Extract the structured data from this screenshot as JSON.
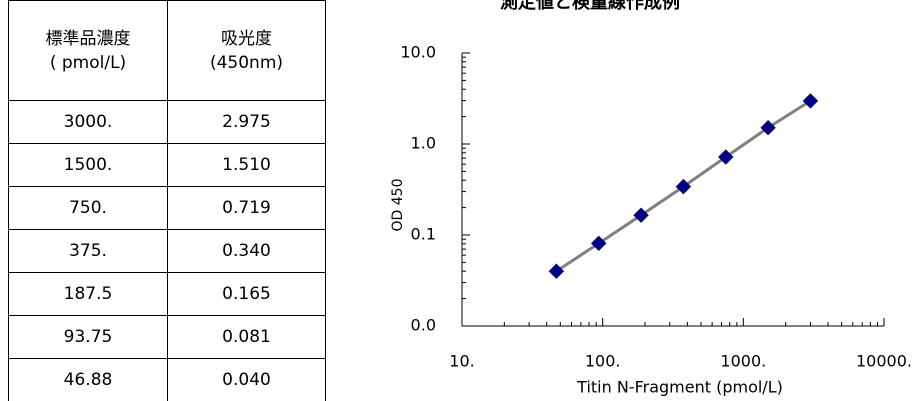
{
  "table": {
    "header": [
      [
        "標準品濃度",
        "( pmol/L)"
      ],
      [
        "吸光度",
        "(450nm)"
      ]
    ],
    "rows": [
      [
        "3000.",
        "2.975"
      ],
      [
        "1500.",
        "1.510"
      ],
      [
        "750.",
        "0.719"
      ],
      [
        "375.",
        "0.340"
      ],
      [
        "187.5",
        "0.165"
      ],
      [
        "93.75",
        "0.081"
      ],
      [
        "46.88",
        "0.040"
      ]
    ]
  },
  "chart_data": {
    "type": "scatter",
    "title": "測定値と検量線作成例",
    "x_label": "Titin N-Fragment (pmol/L)",
    "y_label": "OD 450",
    "x": [
      3000,
      1500,
      750,
      375,
      187.5,
      93.75,
      46.88
    ],
    "series": [
      {
        "color": "#000080",
        "values": [
          2.975,
          1.51,
          0.719,
          0.34,
          0.165,
          0.081,
          0.04
        ]
      }
    ],
    "line_color": "#808080",
    "xlog": true,
    "ylog": true,
    "xlim": [
      10,
      10000
    ],
    "xticks": [
      {
        "value": 10,
        "label": "10."
      },
      {
        "value": 100,
        "label": "100."
      },
      {
        "value": 1000,
        "label": "1000."
      },
      {
        "value": 10000,
        "label": "10000."
      }
    ],
    "ylim": [
      0.01,
      10
    ],
    "yticks": [
      {
        "value": 0.01,
        "label": "0.0"
      },
      0.1,
      {
        "value": 1,
        "label": "1.0"
      },
      {
        "value": 10,
        "label": "10.0"
      }
    ]
  }
}
